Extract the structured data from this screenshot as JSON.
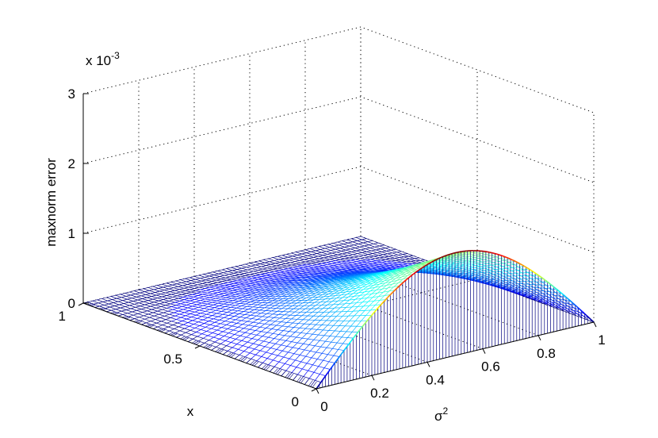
{
  "chart_data": {
    "type": "surface",
    "exponent_label": "x 10",
    "exponent_power": "-3",
    "zlabel": "maxnorm error",
    "xlabel": "x",
    "ylabel_base": "σ",
    "ylabel_power": "2",
    "zlim": [
      0,
      3
    ],
    "z_ticks": [
      "0",
      "1",
      "2",
      "3"
    ],
    "x_ticks": [
      "0",
      "0.5",
      "1"
    ],
    "y_ticks": [
      "0",
      "0.2",
      "0.4",
      "0.6",
      "0.8",
      "1"
    ],
    "xlim": [
      0,
      1
    ],
    "ylim": [
      0,
      1
    ],
    "grid": true,
    "surface": {
      "description_formula": "z = A * x * sin(pi*sigma2) * (1 - x) shape rising toward x=0",
      "peak_value": 1.47,
      "peak_at_sigma2": 0.5,
      "peak_at_x": 0
    },
    "colormap": "jet"
  }
}
